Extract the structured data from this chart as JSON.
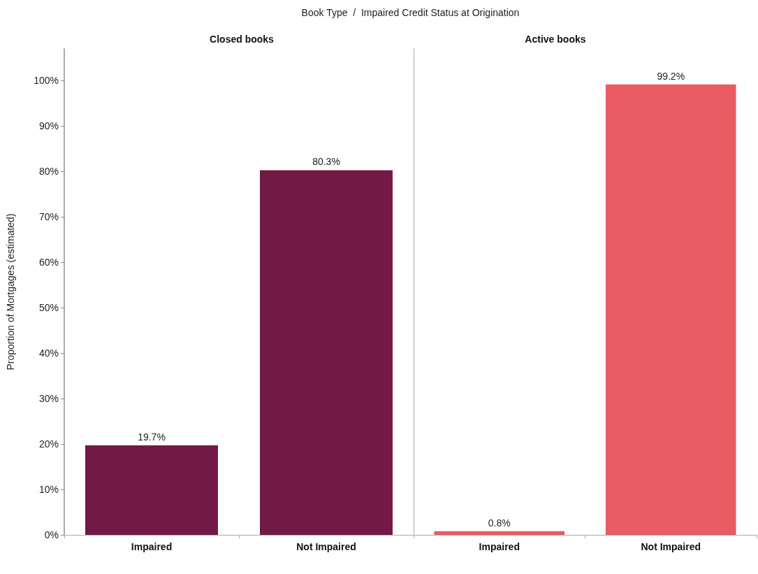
{
  "chart_data": [
    {
      "type": "bar",
      "title": "Closed books",
      "xlabel": "Book Type  /  Impaired Credit Status at Origination",
      "ylabel": "Proportion of Mortgages (estimated)",
      "categories": [
        "Impaired",
        "Not Impaired"
      ],
      "values": [
        19.7,
        80.3
      ],
      "value_labels": [
        "19.7%",
        "80.3%"
      ],
      "color": "#721a45",
      "ylim": [
        0,
        107
      ],
      "yticks": [
        {
          "value": 0,
          "label": "0%"
        },
        {
          "value": 10,
          "label": "10%"
        },
        {
          "value": 20,
          "label": "20%"
        },
        {
          "value": 30,
          "label": "30%"
        },
        {
          "value": 40,
          "label": "40%"
        },
        {
          "value": 50,
          "label": "50%"
        },
        {
          "value": 60,
          "label": "60%"
        },
        {
          "value": 70,
          "label": "70%"
        },
        {
          "value": 80,
          "label": "80%"
        },
        {
          "value": 90,
          "label": "90%"
        },
        {
          "value": 100,
          "label": "100%"
        }
      ],
      "grid": false
    },
    {
      "type": "bar",
      "title": "Active books",
      "categories": [
        "Impaired",
        "Not Impaired"
      ],
      "values": [
        0.8,
        99.2
      ],
      "value_labels": [
        "0.8%",
        "99.2%"
      ],
      "color": "#e95b62",
      "ylim": [
        0,
        107
      ],
      "grid": false,
      "tick_labels": "x"
    }
  ]
}
